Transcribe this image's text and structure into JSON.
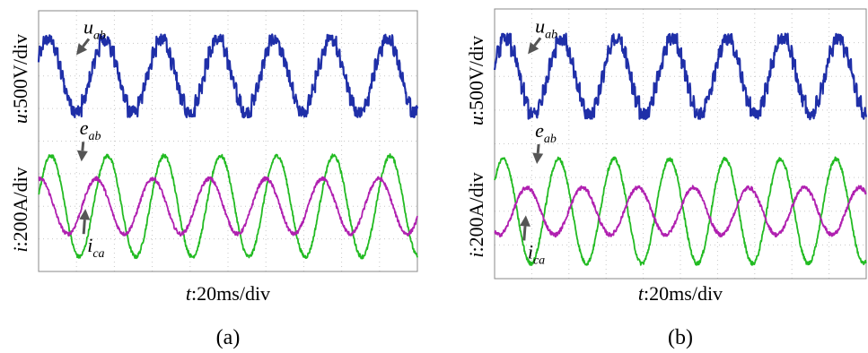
{
  "chart_data": [
    {
      "type": "line",
      "caption": "(a)",
      "xlabel": {
        "var": "t",
        "unit": ":20ms/div"
      },
      "ylabel_top": {
        "var": "u",
        "unit": ":500V/div"
      },
      "ylabel_bottom": {
        "var": "i",
        "unit": ":200A/div"
      },
      "divisions": {
        "x": 10,
        "y": 8
      },
      "grid": true,
      "x_range_div": [
        0,
        10
      ],
      "series": [
        {
          "name_main": "u",
          "name_sub": "ab",
          "color": "#1f2fa8",
          "waveform": "multilevel-staircase",
          "cycles": 6.7,
          "offset_div": 6.0,
          "amplitude_div": 1.1,
          "levels": 3,
          "phase_rad": 0.5
        },
        {
          "name_main": "e",
          "name_sub": "ab",
          "color": "#22bb22",
          "waveform": "sine",
          "cycles": 6.7,
          "offset_div": 2.0,
          "amplitude_div": 1.55,
          "phase_rad": 0.2
        },
        {
          "name_main": "i",
          "name_sub": "ca",
          "color": "#b020b0",
          "waveform": "sine",
          "cycles": 6.7,
          "offset_div": 2.0,
          "amplitude_div": 0.85,
          "phase_rad": 1.45
        }
      ],
      "annotations": [
        {
          "series": 0,
          "x_div": 0.9,
          "y_div": 7.3
        },
        {
          "series": 1,
          "x_div": 0.8,
          "y_div": 4.2
        },
        {
          "series": 2,
          "x_div": 1.0,
          "y_div": 0.6
        }
      ]
    },
    {
      "type": "line",
      "caption": "(b)",
      "xlabel": {
        "var": "t",
        "unit": ":20ms/div"
      },
      "ylabel_top": {
        "var": "u",
        "unit": ":500V/div"
      },
      "ylabel_bottom": {
        "var": "i",
        "unit": ":200A/div"
      },
      "divisions": {
        "x": 10,
        "y": 8
      },
      "grid": true,
      "x_range_div": [
        0,
        10
      ],
      "series": [
        {
          "name_main": "u",
          "name_sub": "ab",
          "color": "#1f2fa8",
          "waveform": "multilevel-staircase",
          "cycles": 6.7,
          "offset_div": 6.0,
          "amplitude_div": 1.1,
          "levels": 3,
          "phase_rad": 0.3
        },
        {
          "name_main": "e",
          "name_sub": "ab",
          "color": "#22bb22",
          "waveform": "sine",
          "cycles": 6.7,
          "offset_div": 2.0,
          "amplitude_div": 1.55,
          "phase_rad": 0.6
        },
        {
          "name_main": "i",
          "name_sub": "ca",
          "color": "#b020b0",
          "waveform": "sine",
          "cycles": 6.7,
          "offset_div": 2.0,
          "amplitude_div": 0.7,
          "phase_rad": -2.1
        }
      ],
      "annotations": [
        {
          "series": 0,
          "x_div": 0.8,
          "y_div": 7.3
        },
        {
          "series": 1,
          "x_div": 0.8,
          "y_div": 4.2
        },
        {
          "series": 2,
          "x_div": 0.6,
          "y_div": 0.6
        }
      ]
    }
  ]
}
